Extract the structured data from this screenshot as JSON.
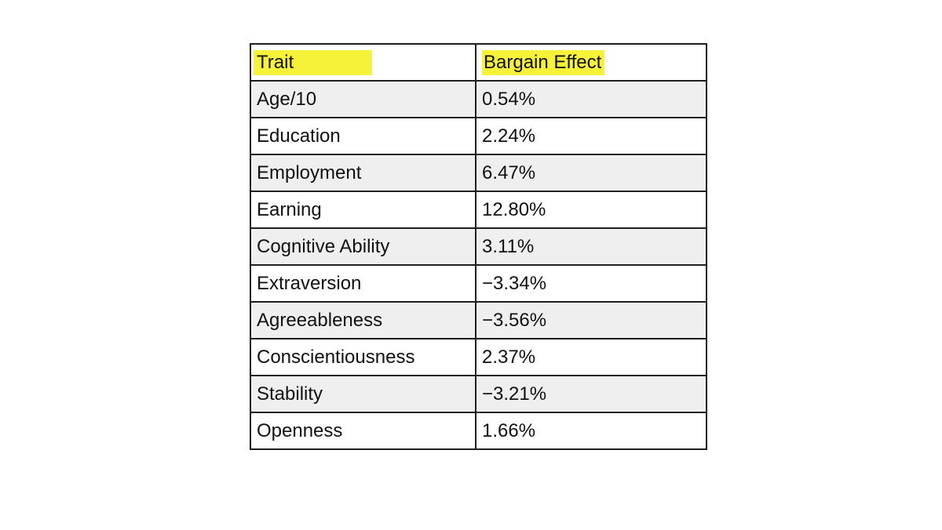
{
  "table": {
    "headers": [
      "Trait",
      "Bargain Effect"
    ],
    "highlight_color": "#f6f23a",
    "rows": [
      {
        "trait": "Age/10",
        "effect": "0.54%"
      },
      {
        "trait": "Education",
        "effect": "2.24%"
      },
      {
        "trait": "Employment",
        "effect": "6.47%"
      },
      {
        "trait": "Earning",
        "effect": "12.80%"
      },
      {
        "trait": "Cognitive Ability",
        "effect": "3.11%"
      },
      {
        "trait": "Extraversion",
        "effect": "−3.34%"
      },
      {
        "trait": "Agreeableness",
        "effect": "−3.56%"
      },
      {
        "trait": "Conscientiousness",
        "effect": "2.37%"
      },
      {
        "trait": "Stability",
        "effect": "−3.21%"
      },
      {
        "trait": "Openness",
        "effect": "1.66%"
      }
    ]
  }
}
